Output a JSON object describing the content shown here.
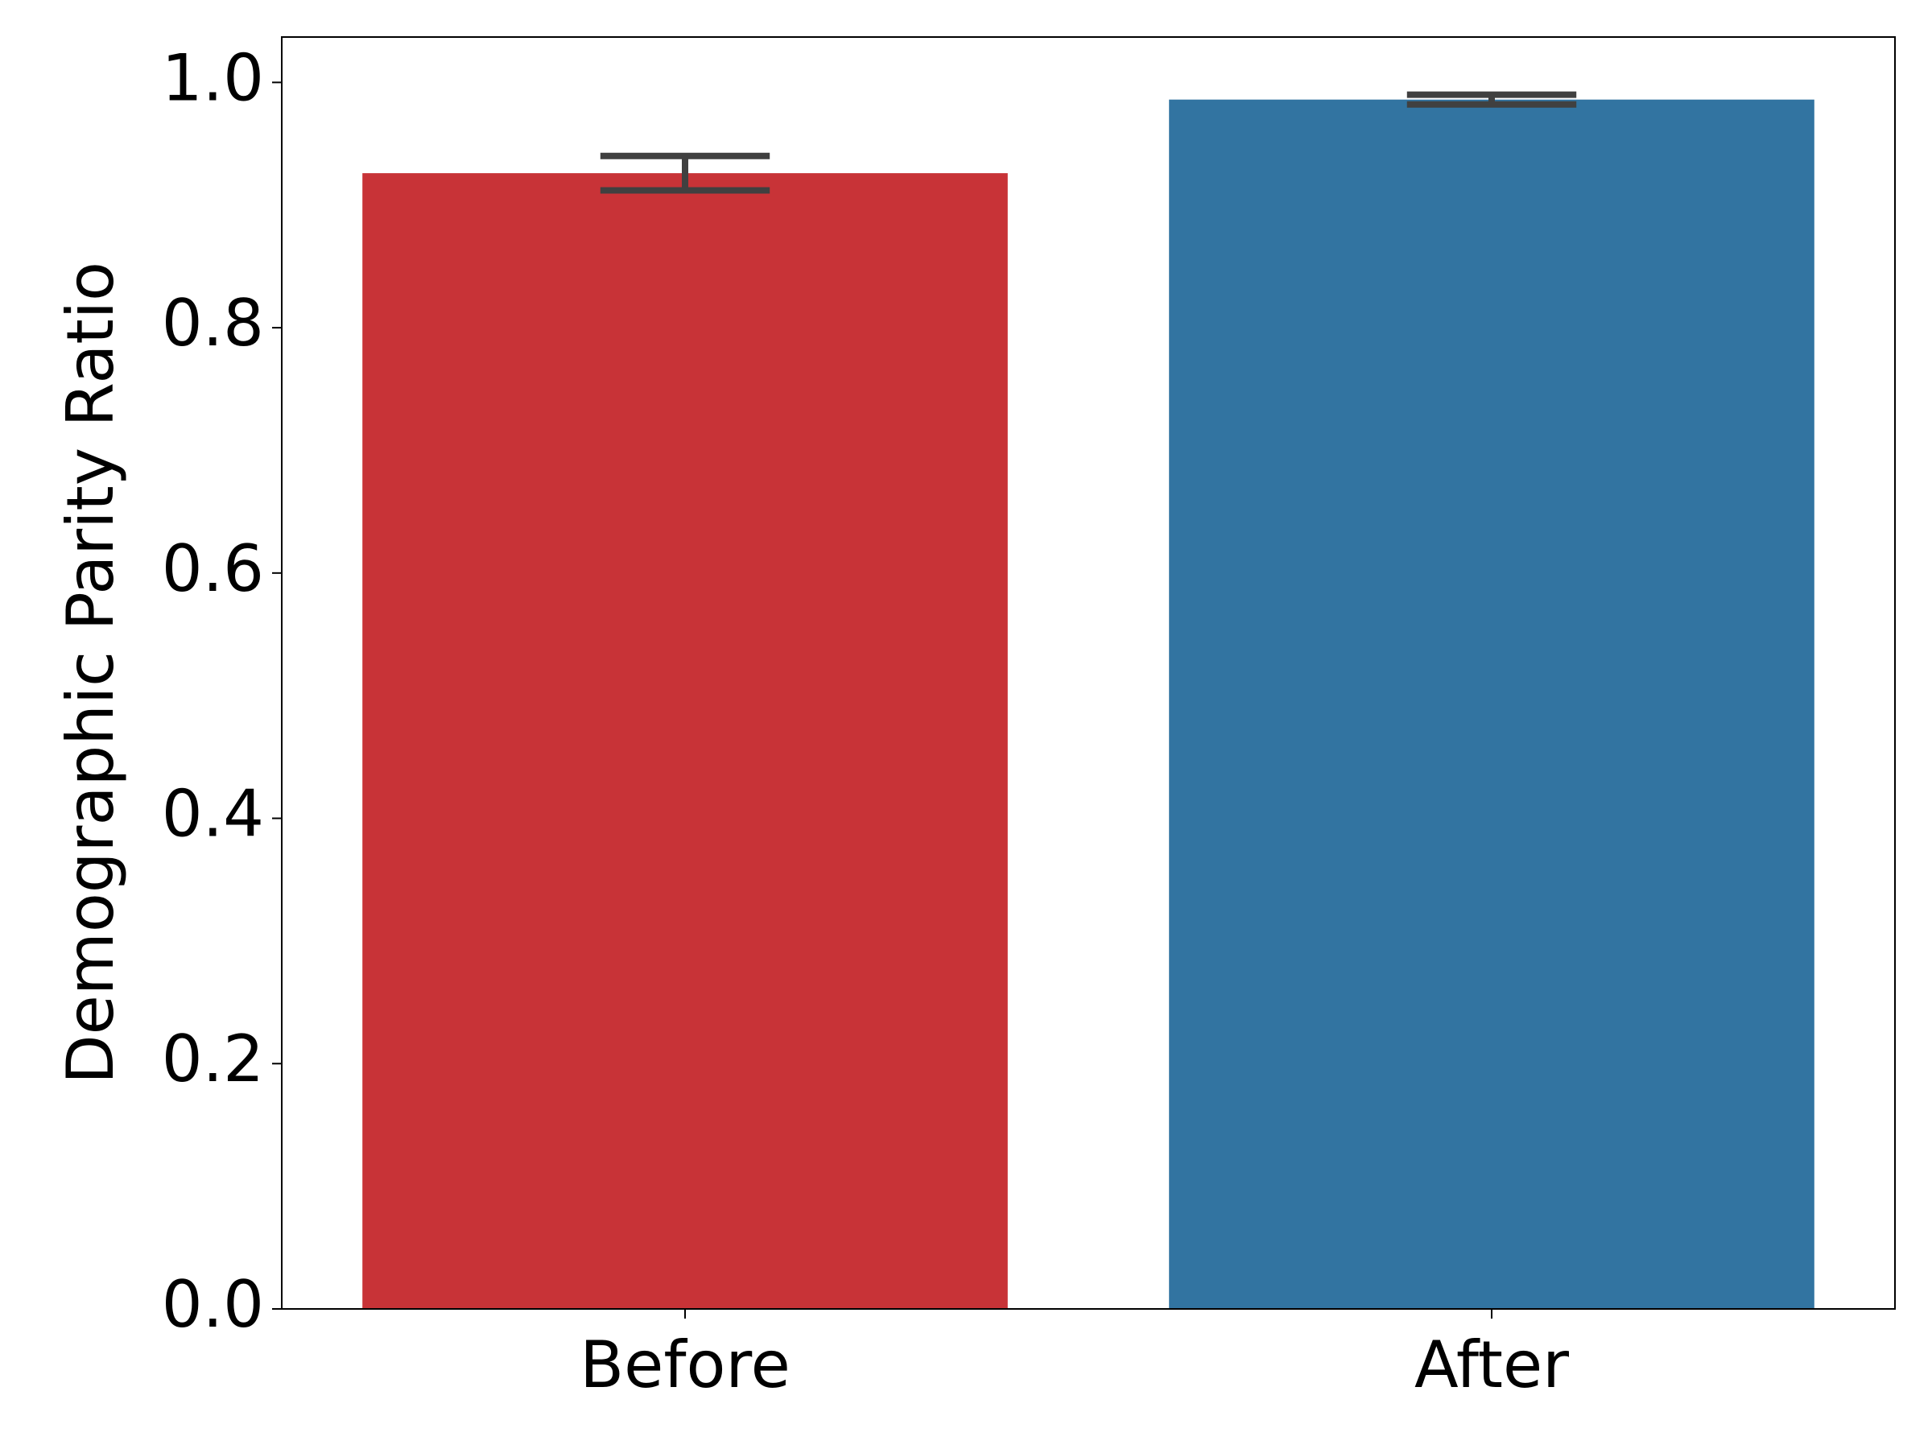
{
  "chart_data": {
    "type": "bar",
    "categories": [
      "Before",
      "After"
    ],
    "values": [
      0.926,
      0.986
    ],
    "errors": [
      0.014,
      0.004
    ],
    "colors": [
      "#c83337",
      "#3274a1"
    ],
    "error_color": "#404040",
    "y_label": "Demographic Parity Ratio",
    "ylim": [
      0,
      1.037
    ],
    "yticks": [
      {
        "value": 0,
        "label": "0.0"
      },
      0.2,
      0.4,
      0.6,
      0.8,
      {
        "value": 1,
        "label": "1.0"
      }
    ],
    "grid": false
  }
}
